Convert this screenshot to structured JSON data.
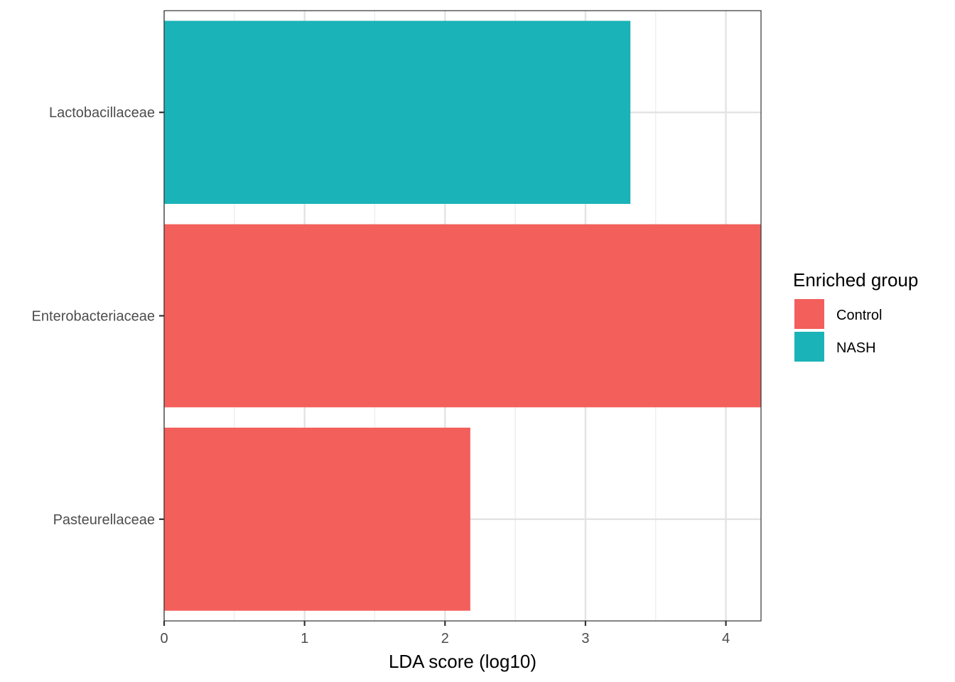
{
  "chart_data": {
    "type": "bar",
    "orientation": "horizontal",
    "categories": [
      "Lactobacillaceae",
      "Enterobacteriaceae",
      "Pasteurellaceae"
    ],
    "values": [
      3.32,
      4.25,
      2.18
    ],
    "groups": [
      "NASH",
      "Control",
      "Control"
    ],
    "xlabel": "LDA score (log10)",
    "ylabel": "",
    "xlim": [
      0,
      4.25
    ],
    "xticks": [
      0,
      1,
      2,
      3,
      4
    ],
    "grid": true,
    "legend": {
      "title": "Enriched group",
      "placement": "right",
      "entries": [
        {
          "name": "Control",
          "color": "#F35F5B"
        },
        {
          "name": "NASH",
          "color": "#1AB3B7"
        }
      ]
    }
  }
}
